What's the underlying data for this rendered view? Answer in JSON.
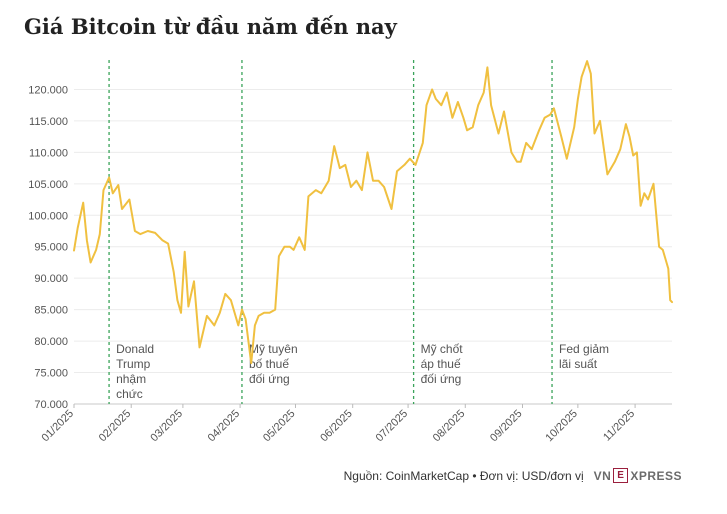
{
  "chart_data": {
    "type": "line",
    "title": "Giá Bitcoin từ đầu năm đến nay",
    "xlabel": "",
    "ylabel": "",
    "x_ticks": [
      "01/2025",
      "02/2025",
      "03/2025",
      "04/2025",
      "05/2025",
      "06/2025",
      "07/2025",
      "08/2025",
      "09/2025",
      "10/2025",
      "11/2025"
    ],
    "y_ticks": [
      "70.000",
      "75.000",
      "80.000",
      "85.000",
      "90.000",
      "95.000",
      "100.000",
      "105.000",
      "110.000",
      "115.000",
      "120.000"
    ],
    "ylim": [
      70000,
      125000
    ],
    "x_range": [
      "2025-01-01",
      "2025-11-21"
    ],
    "grid": "horizontal",
    "color": "#f0c040",
    "series": [
      {
        "values": [
          [
            "2025-01-01",
            94400
          ],
          [
            "2025-01-03",
            98000
          ],
          [
            "2025-01-06",
            102000
          ],
          [
            "2025-01-08",
            96000
          ],
          [
            "2025-01-10",
            92500
          ],
          [
            "2025-01-13",
            94500
          ],
          [
            "2025-01-15",
            97000
          ],
          [
            "2025-01-17",
            104000
          ],
          [
            "2025-01-20",
            106000
          ],
          [
            "2025-01-22",
            103500
          ],
          [
            "2025-01-25",
            104800
          ],
          [
            "2025-01-27",
            101000
          ],
          [
            "2025-01-31",
            102500
          ],
          [
            "2025-02-03",
            97500
          ],
          [
            "2025-02-06",
            97000
          ],
          [
            "2025-02-10",
            97500
          ],
          [
            "2025-02-14",
            97200
          ],
          [
            "2025-02-18",
            96000
          ],
          [
            "2025-02-21",
            95500
          ],
          [
            "2025-02-24",
            91000
          ],
          [
            "2025-02-26",
            86500
          ],
          [
            "2025-02-28",
            84500
          ],
          [
            "2025-03-02",
            94200
          ],
          [
            "2025-03-04",
            85500
          ],
          [
            "2025-03-07",
            89500
          ],
          [
            "2025-03-10",
            79000
          ],
          [
            "2025-03-14",
            84000
          ],
          [
            "2025-03-18",
            82500
          ],
          [
            "2025-03-21",
            84500
          ],
          [
            "2025-03-24",
            87500
          ],
          [
            "2025-03-27",
            86500
          ],
          [
            "2025-03-31",
            82500
          ],
          [
            "2025-04-02",
            85000
          ],
          [
            "2025-04-04",
            83500
          ],
          [
            "2025-04-07",
            76500
          ],
          [
            "2025-04-09",
            82500
          ],
          [
            "2025-04-11",
            84000
          ],
          [
            "2025-04-14",
            84500
          ],
          [
            "2025-04-17",
            84500
          ],
          [
            "2025-04-20",
            85000
          ],
          [
            "2025-04-22",
            93500
          ],
          [
            "2025-04-25",
            95000
          ],
          [
            "2025-04-28",
            95000
          ],
          [
            "2025-04-30",
            94500
          ],
          [
            "2025-05-03",
            96500
          ],
          [
            "2025-05-06",
            94500
          ],
          [
            "2025-05-08",
            103000
          ],
          [
            "2025-05-12",
            104000
          ],
          [
            "2025-05-15",
            103500
          ],
          [
            "2025-05-19",
            105500
          ],
          [
            "2025-05-22",
            111000
          ],
          [
            "2025-05-25",
            107500
          ],
          [
            "2025-05-28",
            108000
          ],
          [
            "2025-05-31",
            104500
          ],
          [
            "2025-06-03",
            105500
          ],
          [
            "2025-06-06",
            104000
          ],
          [
            "2025-06-09",
            110000
          ],
          [
            "2025-06-12",
            105500
          ],
          [
            "2025-06-15",
            105500
          ],
          [
            "2025-06-18",
            104500
          ],
          [
            "2025-06-22",
            101000
          ],
          [
            "2025-06-25",
            107000
          ],
          [
            "2025-06-29",
            108000
          ],
          [
            "2025-07-02",
            109000
          ],
          [
            "2025-07-05",
            108000
          ],
          [
            "2025-07-09",
            111500
          ],
          [
            "2025-07-11",
            117500
          ],
          [
            "2025-07-14",
            120000
          ],
          [
            "2025-07-16",
            118500
          ],
          [
            "2025-07-19",
            117500
          ],
          [
            "2025-07-22",
            119500
          ],
          [
            "2025-07-25",
            115500
          ],
          [
            "2025-07-28",
            118000
          ],
          [
            "2025-07-31",
            115500
          ],
          [
            "2025-08-02",
            113500
          ],
          [
            "2025-08-05",
            114000
          ],
          [
            "2025-08-08",
            117500
          ],
          [
            "2025-08-11",
            119500
          ],
          [
            "2025-08-13",
            123500
          ],
          [
            "2025-08-15",
            117500
          ],
          [
            "2025-08-19",
            113000
          ],
          [
            "2025-08-22",
            116500
          ],
          [
            "2025-08-26",
            110000
          ],
          [
            "2025-08-29",
            108500
          ],
          [
            "2025-08-31",
            108500
          ],
          [
            "2025-09-03",
            111500
          ],
          [
            "2025-09-06",
            110500
          ],
          [
            "2025-09-10",
            113500
          ],
          [
            "2025-09-13",
            115500
          ],
          [
            "2025-09-16",
            116000
          ],
          [
            "2025-09-18",
            117000
          ],
          [
            "2025-09-22",
            112500
          ],
          [
            "2025-09-25",
            109000
          ],
          [
            "2025-09-29",
            114000
          ],
          [
            "2025-10-01",
            118500
          ],
          [
            "2025-10-03",
            122000
          ],
          [
            "2025-10-06",
            124500
          ],
          [
            "2025-10-08",
            122500
          ],
          [
            "2025-10-10",
            113000
          ],
          [
            "2025-10-13",
            115000
          ],
          [
            "2025-10-17",
            106500
          ],
          [
            "2025-10-21",
            108500
          ],
          [
            "2025-10-24",
            110500
          ],
          [
            "2025-10-27",
            114500
          ],
          [
            "2025-10-29",
            112500
          ],
          [
            "2025-10-31",
            109500
          ],
          [
            "2025-11-02",
            110000
          ],
          [
            "2025-11-04",
            101500
          ],
          [
            "2025-11-06",
            103500
          ],
          [
            "2025-11-08",
            102500
          ],
          [
            "2025-11-11",
            105000
          ],
          [
            "2025-11-14",
            95000
          ],
          [
            "2025-11-16",
            94500
          ],
          [
            "2025-11-18",
            92500
          ],
          [
            "2025-11-19",
            91500
          ],
          [
            "2025-11-20",
            86500
          ],
          [
            "2025-11-21",
            86200
          ]
        ]
      }
    ],
    "annotations": [
      {
        "date": "2025-01-20",
        "lines": [
          "Donald",
          "Trump",
          "nhậm",
          "chức"
        ]
      },
      {
        "date": "2025-04-02",
        "lines": [
          "Mỹ tuyên",
          "bố thuế",
          "đối ứng"
        ]
      },
      {
        "date": "2025-07-04",
        "lines": [
          "Mỹ chốt",
          "áp thuế",
          "đối ứng"
        ]
      },
      {
        "date": "2025-09-17",
        "lines": [
          "Fed giảm",
          "lãi suất"
        ]
      }
    ]
  },
  "footer": {
    "source": "Nguồn: CoinMarketCap • Đơn vị: USD/đơn vị",
    "logo_left": "VN",
    "logo_mark": "E",
    "logo_right": "XPRESS"
  }
}
